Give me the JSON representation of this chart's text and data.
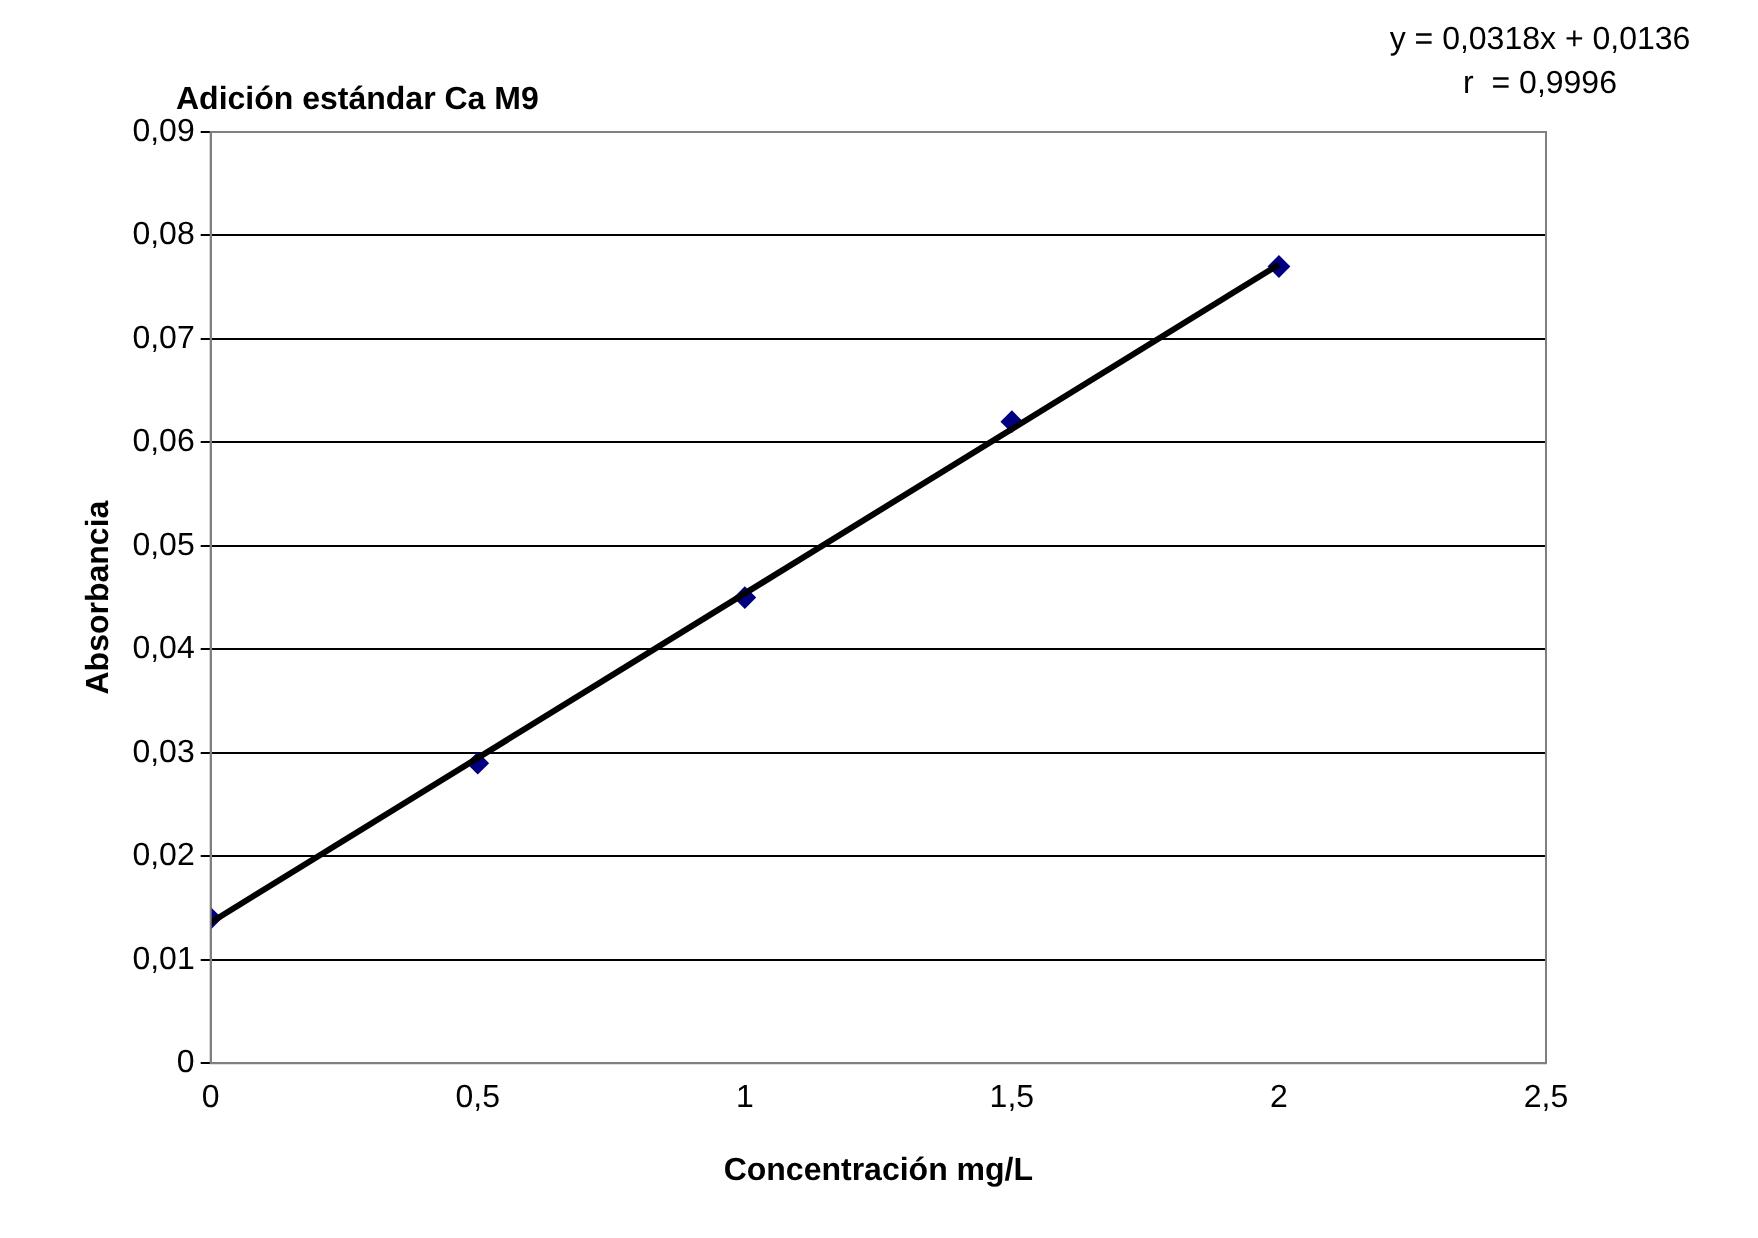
{
  "chart_data": {
    "type": "scatter",
    "title": "Adición estándar Ca M9",
    "xlabel": "Concentración mg/L",
    "ylabel": "Absorbancia",
    "annotations": [
      "y = 0,0318x + 0,0136",
      "r  = 0,9996"
    ],
    "x": [
      0,
      0.5,
      1,
      1.5,
      2
    ],
    "series": [
      {
        "type": "scatter",
        "color": "#000080",
        "marker": "diamond",
        "values": [
          0.014,
          0.029,
          0.045,
          0.062,
          0.077
        ]
      },
      {
        "type": "line",
        "color": "#000000",
        "marker": "none",
        "x": [
          0,
          2
        ],
        "values": [
          0.0136,
          0.0772
        ]
      }
    ],
    "xlim": [
      0,
      2.5
    ],
    "xticks": [
      0,
      {
        "value": 0.5,
        "label": "0,5"
      },
      1,
      {
        "value": 1.5,
        "label": "1,5"
      },
      2,
      {
        "value": 2.5,
        "label": "2,5"
      }
    ],
    "ylim": [
      0,
      0.09
    ],
    "yticks": [
      0,
      {
        "value": 0.01,
        "label": "0,01"
      },
      {
        "value": 0.02,
        "label": "0,02"
      },
      {
        "value": 0.03,
        "label": "0,03"
      },
      {
        "value": 0.04,
        "label": "0,04"
      },
      {
        "value": 0.05,
        "label": "0,05"
      },
      {
        "value": 0.06,
        "label": "0,06"
      },
      {
        "value": 0.07,
        "label": "0,07"
      },
      {
        "value": 0.08,
        "label": "0,08"
      },
      {
        "value": 0.09,
        "label": "0,09"
      }
    ],
    "grid": "y",
    "legend": false
  }
}
